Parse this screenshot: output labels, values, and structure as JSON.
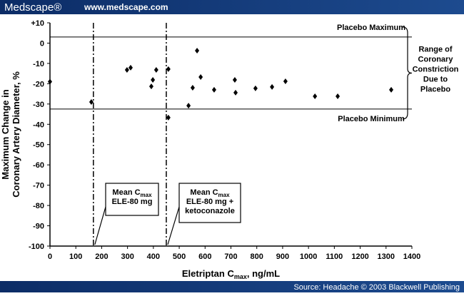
{
  "header": {
    "logo": "Medscape®",
    "url": "www.medscape.com"
  },
  "footer": {
    "source": "Source: Headache © 2003 Blackwell Publishing"
  },
  "chart_data": {
    "type": "scatter",
    "x_label": [
      "Eletriptan C",
      "max",
      ", ng/mL"
    ],
    "y_label": [
      "Maximum  Change in",
      "Coronary Artery Diameter, %"
    ],
    "x": [
      0,
      160,
      298,
      312,
      392,
      398,
      411,
      458,
      458,
      536,
      552,
      569,
      583,
      635,
      715,
      718,
      795,
      859,
      911,
      1025,
      1113,
      1320
    ],
    "values": [
      -19,
      -29,
      -13.2,
      -12.1,
      -21.3,
      -18.1,
      -13.2,
      -12.8,
      -36.7,
      -30.8,
      -22,
      -3.7,
      -16.7,
      -23,
      -18.1,
      -24.4,
      -22.3,
      -21.6,
      -18.8,
      -26.2,
      -26.2,
      -23
    ],
    "color": "#000000",
    "xlim": [
      0,
      1400
    ],
    "xticks": [
      0,
      100,
      200,
      300,
      400,
      500,
      600,
      700,
      800,
      900,
      1000,
      1100,
      1200,
      1300,
      1400
    ],
    "ylim": [
      -100,
      10
    ],
    "yticks": [
      {
        "value": 10,
        "label": "+10"
      },
      0,
      -10,
      -20,
      -30,
      -40,
      -50,
      -60,
      -70,
      -80,
      -90,
      -100
    ],
    "reference_lines": [
      {
        "value": 3,
        "label": "Placebo Maximum"
      },
      {
        "value": -32.5,
        "label": "Placebo Minimum"
      }
    ],
    "vertical_lines": [
      168,
      450
    ],
    "annotations": [
      {
        "lines": [
          "Mean C",
          "ELE-80 mg"
        ],
        "sub": "max"
      },
      {
        "lines": [
          "Mean C",
          "ELE-80 mg +",
          "ketoconazole"
        ],
        "sub": "max"
      }
    ],
    "range_label": [
      "Range of",
      "Coronary",
      "Constriction",
      "Due to",
      "Placebo"
    ]
  }
}
